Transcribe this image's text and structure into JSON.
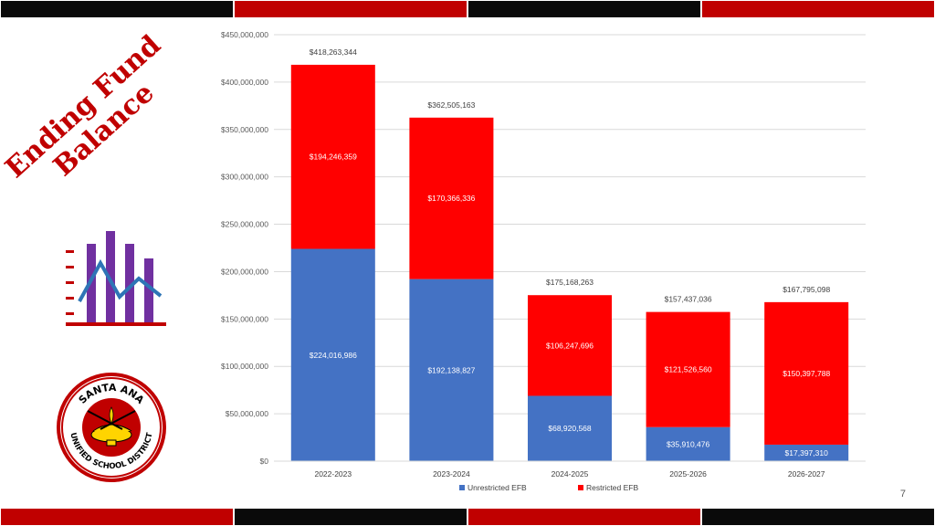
{
  "slide": {
    "title_line1": "Ending Fund",
    "title_line2": "Balance",
    "page_number": "7"
  },
  "logo": {
    "text_top": "SANTA ANA",
    "text_bottom": "UNIFIED SCHOOL DISTRICT"
  },
  "colors": {
    "unrestricted": "#4472c4",
    "restricted": "#ff0000",
    "accent_red": "#c00000",
    "band_black": "#0a0a0a",
    "icon_purple": "#7030a0",
    "icon_blue": "#2e75b6"
  },
  "icons": {
    "chart_icon": "bar-line-chart-icon"
  },
  "chart_data": {
    "type": "bar",
    "stacked": true,
    "categories": [
      "2022-2023",
      "2023-2024",
      "2024-2025",
      "2025-2026",
      "2026-2027"
    ],
    "series": [
      {
        "name": "Unrestricted EFB",
        "color": "#4472c4",
        "values": [
          224016986,
          192138827,
          68920568,
          35910476,
          17397310
        ],
        "labels": [
          "$224,016,986",
          "$192,138,827",
          "$68,920,568",
          "$35,910,476",
          "$17,397,310"
        ]
      },
      {
        "name": "Restricted EFB",
        "color": "#ff0000",
        "values": [
          194246359,
          170366336,
          106247696,
          121526560,
          150397788
        ],
        "labels": [
          "$194,246,359",
          "$170,366,336",
          "$106,247,696",
          "$121,526,560",
          "$150,397,788"
        ]
      }
    ],
    "totals": [
      418263344,
      362505163,
      175168263,
      157437036,
      167795098
    ],
    "total_labels": [
      "$418,263,344",
      "$362,505,163",
      "$175,168,263",
      "$157,437,036",
      "$167,795,098"
    ],
    "ylim": [
      0,
      450000000
    ],
    "yticks": [
      0,
      50000000,
      100000000,
      150000000,
      200000000,
      250000000,
      300000000,
      350000000,
      400000000,
      450000000
    ],
    "ytick_labels": [
      "$0",
      "$50,000,000",
      "$100,000,000",
      "$150,000,000",
      "$200,000,000",
      "$250,000,000",
      "$300,000,000",
      "$350,000,000",
      "$400,000,000",
      "$450,000,000"
    ],
    "grid": true,
    "legend": "bottom"
  }
}
